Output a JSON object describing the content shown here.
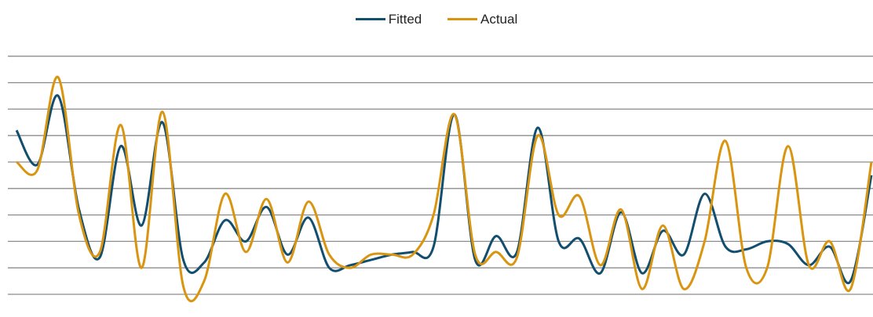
{
  "chart_data": {
    "type": "line",
    "title": "",
    "xlabel": "",
    "ylabel": "",
    "legend_position": "top-center",
    "grid": "horizontal",
    "ylim": [
      0,
      9.5
    ],
    "gridlines": [
      0,
      1,
      2,
      3,
      4,
      5,
      6,
      7,
      8,
      9
    ],
    "series": [
      {
        "name": "Fitted",
        "color": "#124e6e",
        "values": [
          6.2,
          4.9,
          7.5,
          3.2,
          1.4,
          5.6,
          2.6,
          6.5,
          1.3,
          1.2,
          2.8,
          2.0,
          3.3,
          1.5,
          2.9,
          1.0,
          1.1,
          1.3,
          1.5,
          1.6,
          1.8,
          6.8,
          1.3,
          2.2,
          1.6,
          6.3,
          2.0,
          2.1,
          0.8,
          3.1,
          0.8,
          2.4,
          1.5,
          3.8,
          1.8,
          1.7,
          2.0,
          1.9,
          1.1,
          1.8,
          0.5,
          4.5
        ]
      },
      {
        "name": "Actual",
        "color": "#d9950f",
        "values": [
          5.0,
          4.7,
          8.2,
          3.0,
          1.6,
          6.4,
          1.0,
          6.9,
          0.3,
          0.5,
          3.8,
          1.6,
          3.6,
          1.2,
          3.5,
          1.5,
          1.0,
          1.5,
          1.5,
          1.5,
          3.0,
          6.8,
          1.5,
          1.6,
          1.4,
          6.0,
          3.0,
          3.7,
          1.1,
          3.2,
          0.2,
          2.6,
          0.2,
          2.0,
          5.8,
          1.0,
          1.0,
          5.6,
          1.1,
          2.0,
          0.2,
          5.0
        ]
      }
    ]
  }
}
